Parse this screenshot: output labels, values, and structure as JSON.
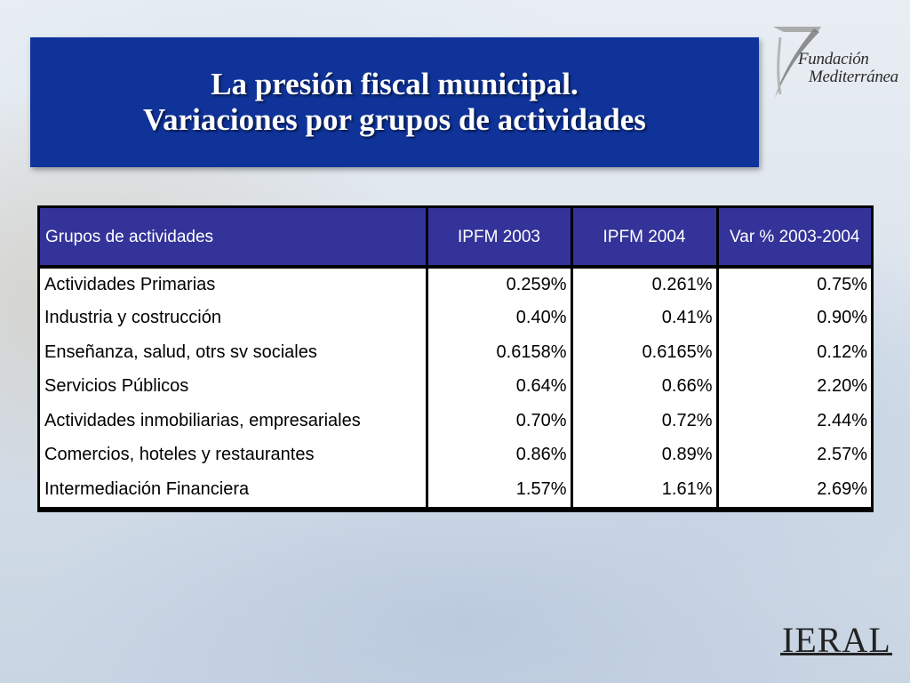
{
  "slide": {
    "title_line1": "La presión fiscal municipal.",
    "title_line2": "Variaciones por grupos de actividades"
  },
  "logos": {
    "fundacion": {
      "icon": "fundacion-mediterranea-logo",
      "line1": "Fundación",
      "line2": "Mediterránea"
    },
    "ieral": {
      "icon": "ieral-logo",
      "text": "IERAL"
    }
  },
  "table": {
    "headers": [
      "Grupos de actividades",
      "IPFM 2003",
      "IPFM 2004",
      "Var % 2003-2004"
    ],
    "rows": [
      [
        "Actividades Primarias",
        "0.259%",
        "0.261%",
        "0.75%"
      ],
      [
        "Industria y costrucción",
        "0.40%",
        "0.41%",
        "0.90%"
      ],
      [
        "Enseñanza, salud, otrs sv sociales",
        "0.6158%",
        "0.6165%",
        "0.12%"
      ],
      [
        "Servicios Públicos",
        "0.64%",
        "0.66%",
        "2.20%"
      ],
      [
        "Actividades inmobiliarias, empresariales",
        "0.70%",
        "0.72%",
        "2.44%"
      ],
      [
        "Comercios, hoteles y restaurantes",
        "0.86%",
        "0.89%",
        "2.57%"
      ],
      [
        "Intermediación Financiera",
        "1.57%",
        "1.61%",
        "2.69%"
      ]
    ]
  },
  "colors": {
    "title_background": "#0f3399",
    "header_background": "#33339a",
    "header_text": "#ffffff",
    "cell_background": "#ffffff",
    "grid_lines": "#000000"
  }
}
